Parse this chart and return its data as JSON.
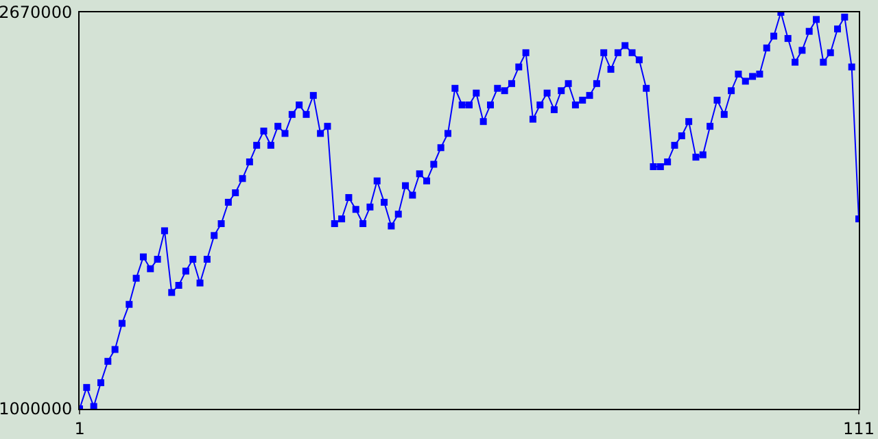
{
  "chart_data": {
    "type": "line",
    "x": [
      1,
      2,
      3,
      4,
      5,
      6,
      7,
      8,
      9,
      10,
      11,
      12,
      13,
      14,
      15,
      16,
      17,
      18,
      19,
      20,
      21,
      22,
      23,
      24,
      25,
      26,
      27,
      28,
      29,
      30,
      31,
      32,
      33,
      34,
      35,
      36,
      37,
      38,
      39,
      40,
      41,
      42,
      43,
      44,
      45,
      46,
      47,
      48,
      49,
      50,
      51,
      52,
      53,
      54,
      55,
      56,
      57,
      58,
      59,
      60,
      61,
      62,
      63,
      64,
      65,
      66,
      67,
      68,
      69,
      70,
      71,
      72,
      73,
      74,
      75,
      76,
      77,
      78,
      79,
      80,
      81,
      82,
      83,
      84,
      85,
      86,
      87,
      88,
      89,
      90,
      91,
      92,
      93,
      94,
      95,
      96,
      97,
      98,
      99,
      100,
      101,
      102,
      103,
      104,
      105,
      106,
      107,
      108,
      109,
      110,
      111
    ],
    "series": [
      {
        "color": "#0000ff",
        "values": [
          1000000,
          1090000,
          1010000,
          1110000,
          1200000,
          1250000,
          1360000,
          1440000,
          1550000,
          1640000,
          1590000,
          1630000,
          1750000,
          1490000,
          1520000,
          1580000,
          1630000,
          1530000,
          1630000,
          1730000,
          1780000,
          1870000,
          1910000,
          1970000,
          2040000,
          2110000,
          2170000,
          2110000,
          2190000,
          2160000,
          2240000,
          2280000,
          2240000,
          2320000,
          2160000,
          2190000,
          1780000,
          1800000,
          1890000,
          1840000,
          1780000,
          1850000,
          1960000,
          1870000,
          1770000,
          1820000,
          1940000,
          1900000,
          1990000,
          1960000,
          2030000,
          2100000,
          2160000,
          2350000,
          2280000,
          2280000,
          2330000,
          2210000,
          2280000,
          2350000,
          2340000,
          2370000,
          2440000,
          2500000,
          2220000,
          2280000,
          2330000,
          2260000,
          2340000,
          2370000,
          2280000,
          2300000,
          2320000,
          2370000,
          2500000,
          2430000,
          2500000,
          2530000,
          2500000,
          2470000,
          2350000,
          2020000,
          2020000,
          2040000,
          2110000,
          2150000,
          2210000,
          2060000,
          2070000,
          2190000,
          2300000,
          2240000,
          2340000,
          2410000,
          2380000,
          2400000,
          2410000,
          2520000,
          2570000,
          2670000,
          2560000,
          2460000,
          2510000,
          2590000,
          2640000,
          2460000,
          2500000,
          2600000,
          2650000,
          2440000,
          1800000
        ]
      }
    ],
    "xlim": [
      1,
      111
    ],
    "xticks": [
      1,
      111
    ],
    "ylim": [
      1000000,
      2670000
    ],
    "yticks": [
      1000000,
      2670000
    ],
    "marker": "square",
    "line_style": "solid"
  }
}
